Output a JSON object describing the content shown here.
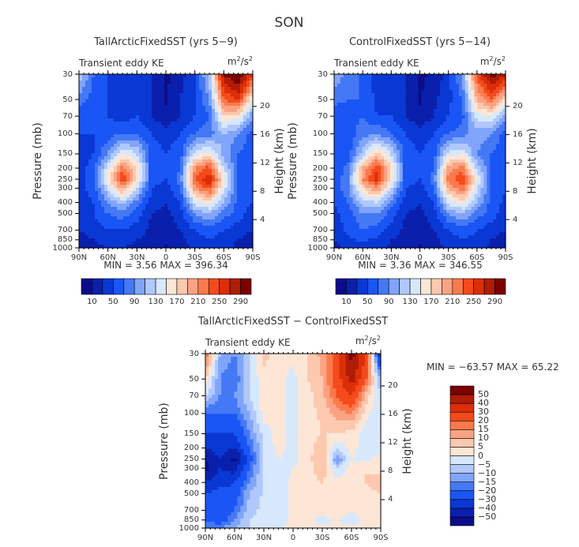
{
  "figure_title": "SON",
  "chart_data": [
    {
      "type": "heatmap",
      "title": "TallArcticFixedSST (yrs 5−9)",
      "left_label": "Transient eddy KE",
      "units": "m²/s²",
      "ylabel": "Pressure (mb)",
      "ylabel2": "Height (km)",
      "stats": "MIN =    3.56   MAX = 396.34",
      "x": [
        90,
        75,
        60,
        45,
        30,
        15,
        0,
        -15,
        -30,
        -45,
        -60,
        -75,
        -90
      ],
      "y": [
        30,
        50,
        70,
        100,
        150,
        200,
        250,
        300,
        400,
        500,
        700,
        850,
        1000
      ],
      "z": [
        [
          130,
          70,
          50,
          30,
          40,
          30,
          5,
          20,
          50,
          120,
          290,
          320,
          250
        ],
        [
          80,
          60,
          50,
          40,
          40,
          30,
          8,
          30,
          50,
          90,
          230,
          250,
          150
        ],
        [
          60,
          50,
          50,
          40,
          50,
          30,
          15,
          30,
          50,
          70,
          170,
          160,
          90
        ],
        [
          50,
          50,
          60,
          70,
          70,
          50,
          40,
          50,
          70,
          80,
          110,
          90,
          60
        ],
        [
          40,
          50,
          90,
          150,
          130,
          60,
          50,
          60,
          140,
          160,
          100,
          70,
          50
        ],
        [
          40,
          60,
          140,
          220,
          170,
          60,
          50,
          70,
          210,
          240,
          130,
          70,
          50
        ],
        [
          40,
          60,
          160,
          250,
          170,
          60,
          50,
          80,
          230,
          270,
          160,
          70,
          50
        ],
        [
          40,
          60,
          130,
          200,
          130,
          50,
          40,
          70,
          200,
          240,
          140,
          70,
          50
        ],
        [
          40,
          50,
          90,
          120,
          80,
          40,
          30,
          50,
          140,
          160,
          110,
          60,
          50
        ],
        [
          40,
          50,
          70,
          80,
          60,
          30,
          25,
          40,
          90,
          110,
          80,
          60,
          40
        ],
        [
          30,
          40,
          50,
          50,
          40,
          25,
          20,
          30,
          50,
          60,
          50,
          40,
          30
        ],
        [
          20,
          30,
          40,
          40,
          30,
          20,
          15,
          25,
          40,
          50,
          40,
          30,
          20
        ],
        [
          15,
          25,
          30,
          30,
          25,
          15,
          8,
          20,
          35,
          40,
          35,
          25,
          20
        ]
      ],
      "levels": [
        10,
        30,
        50,
        70,
        90,
        110,
        130,
        150,
        170,
        190,
        210,
        230,
        250,
        270,
        290
      ],
      "colorbar_labels": [
        "10",
        "50",
        "90",
        "130",
        "170",
        "210",
        "250",
        "290"
      ]
    },
    {
      "type": "heatmap",
      "title": "ControlFixedSST (yrs 5−14)",
      "left_label": "Transient eddy KE",
      "units": "m²/s²",
      "ylabel": "Pressure (mb)",
      "ylabel2": "Height (km)",
      "stats": "MIN =    3.36   MAX = 346.55",
      "x": [
        90,
        75,
        60,
        45,
        30,
        15,
        0,
        -15,
        -30,
        -45,
        -60,
        -75,
        -90
      ],
      "y": [
        30,
        50,
        70,
        100,
        150,
        200,
        250,
        300,
        400,
        500,
        700,
        850,
        1000
      ],
      "z": [
        [
          110,
          80,
          65,
          35,
          35,
          30,
          5,
          15,
          40,
          100,
          240,
          300,
          280
        ],
        [
          75,
          70,
          70,
          45,
          40,
          30,
          8,
          25,
          45,
          70,
          190,
          230,
          170
        ],
        [
          60,
          60,
          70,
          50,
          50,
          30,
          15,
          30,
          50,
          65,
          140,
          150,
          95
        ],
        [
          55,
          60,
          80,
          90,
          70,
          50,
          40,
          50,
          70,
          80,
          100,
          90,
          60
        ],
        [
          50,
          60,
          120,
          180,
          130,
          60,
          50,
          60,
          140,
          150,
          90,
          70,
          50
        ],
        [
          50,
          80,
          190,
          250,
          170,
          60,
          50,
          70,
          200,
          220,
          120,
          70,
          50
        ],
        [
          50,
          90,
          210,
          260,
          170,
          60,
          50,
          80,
          220,
          250,
          150,
          70,
          50
        ],
        [
          50,
          90,
          170,
          210,
          130,
          50,
          40,
          70,
          190,
          230,
          130,
          70,
          50
        ],
        [
          50,
          70,
          120,
          130,
          80,
          40,
          30,
          50,
          140,
          160,
          110,
          60,
          45
        ],
        [
          45,
          60,
          90,
          90,
          60,
          30,
          25,
          40,
          90,
          110,
          80,
          60,
          40
        ],
        [
          40,
          55,
          70,
          60,
          40,
          25,
          20,
          30,
          50,
          60,
          50,
          40,
          30
        ],
        [
          30,
          45,
          55,
          45,
          30,
          20,
          15,
          25,
          40,
          50,
          45,
          30,
          20
        ],
        [
          25,
          35,
          40,
          35,
          25,
          15,
          8,
          20,
          35,
          40,
          35,
          25,
          20
        ]
      ],
      "levels": [
        10,
        30,
        50,
        70,
        90,
        110,
        130,
        150,
        170,
        190,
        210,
        230,
        250,
        270,
        290
      ],
      "colorbar_labels": [
        "10",
        "50",
        "90",
        "130",
        "170",
        "210",
        "250",
        "290"
      ]
    },
    {
      "type": "heatmap",
      "title": "TallArcticFixedSST − ControlFixedSST",
      "left_label": "Transient eddy KE",
      "units": "m²/s²",
      "ylabel": "Pressure (mb)",
      "ylabel2": "Height (km)",
      "stats": "MIN = −63.57   MAX =  65.22",
      "x": [
        90,
        75,
        60,
        45,
        30,
        15,
        0,
        -15,
        -30,
        -45,
        -60,
        -75,
        -90
      ],
      "y": [
        30,
        50,
        70,
        100,
        150,
        200,
        250,
        300,
        400,
        500,
        700,
        850,
        1000
      ],
      "z": [
        [
          20,
          -10,
          -15,
          -5,
          7,
          3,
          2,
          5,
          12,
          25,
          55,
          30,
          -40
        ],
        [
          5,
          -15,
          -20,
          -5,
          3,
          2,
          -2,
          5,
          10,
          25,
          45,
          20,
          -10
        ],
        [
          -5,
          -15,
          -15,
          -5,
          2,
          2,
          -2,
          3,
          8,
          20,
          30,
          8,
          -5
        ],
        [
          -20,
          -20,
          -20,
          -10,
          2,
          2,
          -2,
          3,
          6,
          12,
          15,
          2,
          -5
        ],
        [
          -30,
          -30,
          -30,
          -15,
          -3,
          2,
          -2,
          3,
          5,
          5,
          3,
          -3,
          -5
        ],
        [
          -40,
          -35,
          -40,
          -20,
          -5,
          2,
          -2,
          3,
          8,
          -5,
          2,
          -3,
          -2
        ],
        [
          -50,
          -40,
          -55,
          -25,
          -5,
          0,
          -2,
          3,
          10,
          -15,
          0,
          -2,
          2
        ],
        [
          -55,
          -40,
          -45,
          -20,
          -5,
          -2,
          0,
          3,
          8,
          -5,
          2,
          5,
          3
        ],
        [
          -40,
          -35,
          -30,
          -15,
          -5,
          -2,
          1,
          3,
          5,
          2,
          2,
          5,
          8
        ],
        [
          -30,
          -25,
          -25,
          -10,
          -4,
          -2,
          1,
          3,
          3,
          2,
          2,
          3,
          5
        ],
        [
          -25,
          -25,
          -20,
          -8,
          -3,
          -2,
          1,
          2,
          2,
          2,
          1,
          2,
          2
        ],
        [
          -20,
          -25,
          -15,
          -5,
          -3,
          -2,
          1,
          1,
          -2,
          1,
          -3,
          1,
          1
        ],
        [
          -15,
          -15,
          -10,
          -5,
          -2,
          -1,
          1,
          1,
          1,
          1,
          1,
          1,
          1
        ]
      ],
      "levels": [
        -50,
        -40,
        -30,
        -20,
        -15,
        -10,
        -5,
        0,
        5,
        10,
        15,
        20,
        30,
        40,
        50
      ],
      "colorbar_labels": [
        "−50",
        "−40",
        "−30",
        "−20",
        "−15",
        "−10",
        "−5",
        "0",
        "5",
        "10",
        "15",
        "20",
        "30",
        "40",
        "50"
      ]
    }
  ],
  "pressure_ticks": [
    "30",
    "50",
    "70",
    "100",
    "150",
    "200",
    "250",
    "300",
    "400",
    "500",
    "700",
    "850",
    "1000"
  ],
  "height_ticks": [
    "4",
    "8",
    "12",
    "16",
    "20"
  ],
  "lat_ticks": [
    "90N",
    "60N",
    "30N",
    "0",
    "30S",
    "60S",
    "90S"
  ],
  "palette": [
    "#0c0c8a",
    "#0a20ac",
    "#0a38d4",
    "#1a55f5",
    "#4478f5",
    "#80a5fa",
    "#b0c8fc",
    "#d8e8fc",
    "#fde6d6",
    "#fcc8ae",
    "#fba282",
    "#fb7a4c",
    "#f44a1c",
    "#dc2e08",
    "#b01c04",
    "#7c0000"
  ]
}
